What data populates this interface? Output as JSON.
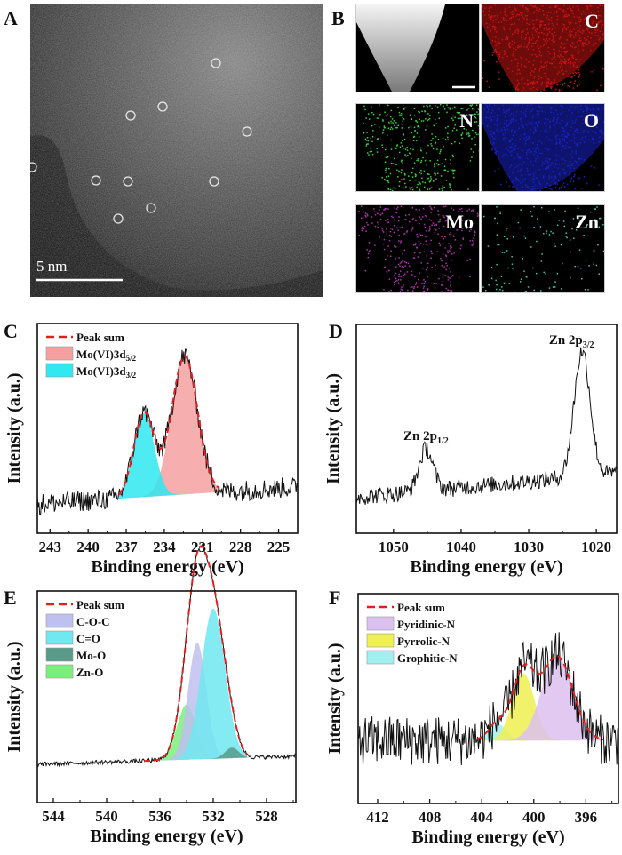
{
  "figure": {
    "panels": [
      {
        "id": "A",
        "letter": "A"
      },
      {
        "id": "B",
        "letter": "B"
      },
      {
        "id": "C",
        "letter": "C"
      },
      {
        "id": "D",
        "letter": "D"
      },
      {
        "id": "E",
        "letter": "E"
      },
      {
        "id": "F",
        "letter": "F"
      }
    ]
  },
  "panelA": {
    "type": "HAADF-STEM image",
    "scale_bar": "5 nm",
    "highlighted_atom_count": 10,
    "circle_color": "#e8e8e8"
  },
  "panelB": {
    "type": "EDS elemental mapping",
    "maps": [
      {
        "element": "",
        "label": "",
        "color": "#d8d8d8",
        "note": "HAADF image with scale bar"
      },
      {
        "element": "C",
        "label": "C",
        "color": "#c81414"
      },
      {
        "element": "N",
        "label": "N",
        "color": "#3ad03a"
      },
      {
        "element": "O",
        "label": "O",
        "color": "#1a22c8"
      },
      {
        "element": "Mo",
        "label": "Mo",
        "color": "#b030b0"
      },
      {
        "element": "Zn",
        "label": "Zn",
        "color": "#40c8b0"
      }
    ]
  },
  "chart_data": [
    {
      "panel": "C",
      "type": "line",
      "title": "",
      "xlabel": "Binding energy (eV)",
      "ylabel": "Intensity (a.u.)",
      "xlim": [
        244,
        223.5
      ],
      "x_reversed": true,
      "xticks": [
        243,
        240,
        237,
        234,
        231,
        228,
        225
      ],
      "yticks": [],
      "legend": {
        "position": "top-left",
        "entries": [
          {
            "label": "Peak sum",
            "style": "dashed-line",
            "color": "#e02020"
          },
          {
            "label": "Mo(VI)3d",
            "sub": "5/2",
            "style": "fill",
            "color": "#f4a0a0"
          },
          {
            "label": "Mo(VI)3d",
            "sub": "3/2",
            "style": "fill",
            "color": "#30e8f0"
          }
        ]
      },
      "baseline": 0.18,
      "noise": 0.05,
      "peaks": [
        {
          "name": "Mo(VI)3d5/2",
          "center": 232.4,
          "height": 0.66,
          "fwhm": 2.4,
          "color": "#f4a0a0"
        },
        {
          "name": "Mo(VI)3d3/2",
          "center": 235.6,
          "height": 0.4,
          "fwhm": 1.9,
          "color": "#30e8f0"
        }
      ],
      "fit_range": [
        237.6,
        229.6
      ],
      "background_slope": -0.004
    },
    {
      "panel": "D",
      "type": "line",
      "title": "",
      "xlabel": "Binding energy (eV)",
      "ylabel": "Intensity (a.u.)",
      "xlim": [
        1055.5,
        1017
      ],
      "x_reversed": true,
      "xticks": [
        1050,
        1040,
        1030,
        1020
      ],
      "yticks": [],
      "annotations": [
        {
          "text": "Zn 2p",
          "sub": "1/2",
          "x": 1045.2
        },
        {
          "text": "Zn 2p",
          "sub": "3/2",
          "x": 1022.1
        }
      ],
      "baseline": 0.23,
      "noise": 0.04,
      "peaks": [
        {
          "name": "Zn 2p1/2",
          "center": 1045.2,
          "height": 0.2,
          "fwhm": 2.4
        },
        {
          "name": "Zn 2p3/2",
          "center": 1022.1,
          "height": 0.6,
          "fwhm": 2.8
        }
      ],
      "background_slope": -0.003
    },
    {
      "panel": "E",
      "type": "line",
      "title": "",
      "xlabel": "Binding energy (eV)",
      "ylabel": "Intensity (a.u.)",
      "xlim": [
        545.2,
        525.8
      ],
      "x_reversed": true,
      "xticks": [
        544,
        540,
        536,
        532,
        528
      ],
      "yticks": [],
      "legend": {
        "position": "top-left",
        "entries": [
          {
            "label": "Peak sum",
            "style": "dashed-line",
            "color": "#e02020"
          },
          {
            "label": "C-O-C",
            "style": "fill",
            "color": "#c0c0f0"
          },
          {
            "label": "C=O",
            "style": "fill",
            "color": "#70e8f0"
          },
          {
            "label": "Mo-O",
            "style": "fill",
            "color": "#5a9a88"
          },
          {
            "label": "Zn-O",
            "style": "fill",
            "color": "#7af07a"
          }
        ]
      },
      "baseline": 0.2,
      "noise": 0.01,
      "peaks": [
        {
          "name": "Zn-O",
          "center": 534.0,
          "height": 0.26,
          "fwhm": 1.7,
          "color": "#7af07a"
        },
        {
          "name": "C-O-C",
          "center": 533.2,
          "height": 0.55,
          "fwhm": 1.6,
          "color": "#c0c0f0"
        },
        {
          "name": "C=O",
          "center": 532.0,
          "height": 0.71,
          "fwhm": 2.1,
          "color": "#70e8f0"
        },
        {
          "name": "Mo-O",
          "center": 530.6,
          "height": 0.05,
          "fwhm": 1.2,
          "color": "#5a9a88"
        }
      ],
      "fit_range": [
        537.2,
        529.4
      ],
      "background_slope": -0.002
    },
    {
      "panel": "F",
      "type": "line",
      "title": "",
      "xlabel": "Binding energy (eV)",
      "ylabel": "Intensity (a.u.)",
      "xlim": [
        413.5,
        393.5
      ],
      "x_reversed": true,
      "xticks": [
        412,
        408,
        404,
        400,
        396
      ],
      "yticks": [],
      "legend": {
        "position": "top-left",
        "entries": [
          {
            "label": "Peak sum",
            "style": "dashed-line",
            "color": "#e02020"
          },
          {
            "label": "Pyridinic-N",
            "style": "fill",
            "color": "#dcc0f0"
          },
          {
            "label": "Pyrrolic-N",
            "style": "fill",
            "color": "#f0f050"
          },
          {
            "label": "Grophitic-N",
            "style": "fill",
            "color": "#a0f0f0"
          }
        ]
      },
      "baseline": 0.3,
      "noise": 0.12,
      "peaks": [
        {
          "name": "Grophitic-N",
          "center": 402.8,
          "height": 0.08,
          "fwhm": 1.6,
          "color": "#a0f0f0"
        },
        {
          "name": "Pyrrolic-N",
          "center": 400.8,
          "height": 0.32,
          "fwhm": 2.0,
          "color": "#f0f050"
        },
        {
          "name": "Pyridinic-N",
          "center": 398.2,
          "height": 0.4,
          "fwhm": 2.8,
          "color": "#dcc0f0"
        }
      ],
      "fit_range": [
        404.4,
        394.6
      ],
      "background_slope": 0
    }
  ]
}
